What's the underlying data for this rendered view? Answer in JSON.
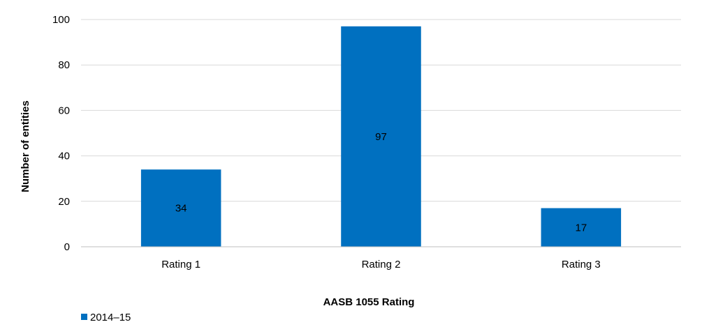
{
  "chart_data": {
    "type": "bar",
    "categories": [
      "Rating 1",
      "Rating 2",
      "Rating 3"
    ],
    "series": [
      {
        "name": "2014–15",
        "values": [
          34,
          97,
          17
        ],
        "color": "#0070C0"
      }
    ],
    "xlabel": "AASB 1055 Rating",
    "ylabel": "Number of entities",
    "ylim": [
      0,
      100
    ],
    "yticks": [
      0,
      20,
      40,
      60,
      80,
      100
    ],
    "grid": true,
    "legend_position": "bottom-left",
    "data_labels": true
  }
}
